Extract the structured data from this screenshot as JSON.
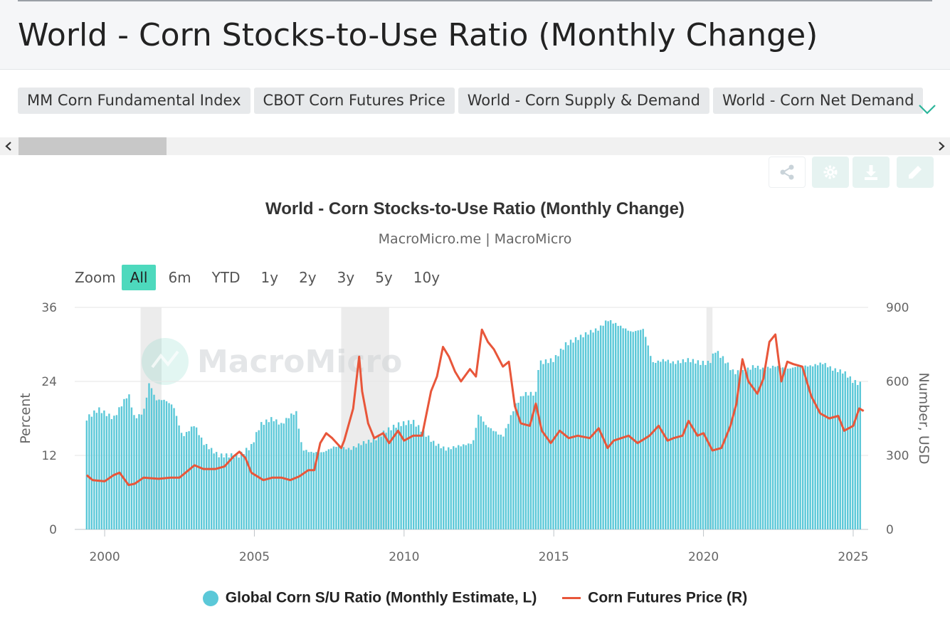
{
  "page": {
    "title": "World - Corn Stocks-to-Use Ratio (Monthly Change)"
  },
  "tabs": [
    {
      "label": "MM Corn Fundamental Index"
    },
    {
      "label": "CBOT Corn Futures Price"
    },
    {
      "label": "World - Corn Supply & Demand"
    },
    {
      "label": "World - Corn Net Demand"
    }
  ],
  "toolbar": {
    "icons": [
      "share-icon",
      "gear-icon",
      "download-icon",
      "edit-icon"
    ]
  },
  "zoom": {
    "label": "Zoom",
    "options": [
      "All",
      "6m",
      "YTD",
      "1y",
      "2y",
      "3y",
      "5y",
      "10y"
    ],
    "selected": "All"
  },
  "watermark": "MacroMicro",
  "colors": {
    "bars": "#5bc8d8",
    "line": "#e8563a",
    "accent": "#4dd9bd",
    "recession": "#ececec"
  },
  "chart_data": {
    "type": "bar",
    "title": "World - Corn Stocks-to-Use Ratio (Monthly Change)",
    "subtitle": "MacroMicro.me | MacroMicro",
    "ylabel_left": "Percent",
    "ylabel_right": "Number, USD",
    "ylim_left": [
      0,
      36
    ],
    "ylim_right": [
      0,
      900
    ],
    "yticks_left": [
      "0",
      "12",
      "24",
      "36"
    ],
    "yticks_right": [
      "0",
      "300",
      "600",
      "900"
    ],
    "xticks": [
      "2000",
      "2005",
      "2010",
      "2015",
      "2020",
      "2025"
    ],
    "xlim": [
      1999.0,
      2025.5
    ],
    "grid": true,
    "legend_position": "bottom",
    "shaded_periods": [
      [
        2001.2,
        2001.9
      ],
      [
        2007.9,
        2009.5
      ],
      [
        2020.1,
        2020.3
      ]
    ],
    "series": [
      {
        "name": "Global Corn S/U Ratio (Monthly Estimate, L)",
        "type": "bar",
        "axis": "left",
        "points": [
          [
            1999.4,
            18.0
          ],
          [
            1999.8,
            19.5
          ],
          [
            2000.3,
            18.0
          ],
          [
            2000.6,
            20.5
          ],
          [
            2000.8,
            22.0
          ],
          [
            2001.0,
            18.0
          ],
          [
            2001.3,
            19.0
          ],
          [
            2001.5,
            24.0
          ],
          [
            2001.7,
            21.0
          ],
          [
            2002.0,
            21.0
          ],
          [
            2002.3,
            20.0
          ],
          [
            2002.6,
            15.0
          ],
          [
            2003.0,
            17.0
          ],
          [
            2003.3,
            14.0
          ],
          [
            2003.8,
            12.0
          ],
          [
            2004.5,
            12.0
          ],
          [
            2004.9,
            13.5
          ],
          [
            2005.2,
            17.0
          ],
          [
            2005.6,
            18.0
          ],
          [
            2005.9,
            17.0
          ],
          [
            2006.2,
            18.5
          ],
          [
            2006.4,
            19.0
          ],
          [
            2006.6,
            13.0
          ],
          [
            2006.9,
            12.5
          ],
          [
            2007.3,
            12.5
          ],
          [
            2007.7,
            13.5
          ],
          [
            2008.2,
            13.0
          ],
          [
            2008.6,
            14.0
          ],
          [
            2009.0,
            14.5
          ],
          [
            2009.4,
            16.0
          ],
          [
            2009.8,
            17.0
          ],
          [
            2010.3,
            17.5
          ],
          [
            2010.6,
            16.0
          ],
          [
            2011.0,
            14.0
          ],
          [
            2011.4,
            13.0
          ],
          [
            2011.8,
            13.5
          ],
          [
            2012.3,
            14.0
          ],
          [
            2012.5,
            19.0
          ],
          [
            2012.7,
            17.0
          ],
          [
            2013.0,
            16.0
          ],
          [
            2013.3,
            15.0
          ],
          [
            2013.7,
            20.0
          ],
          [
            2014.0,
            22.0
          ],
          [
            2014.4,
            22.0
          ],
          [
            2014.5,
            27.0
          ],
          [
            2015.0,
            27.5
          ],
          [
            2015.4,
            30.0
          ],
          [
            2015.8,
            31.0
          ],
          [
            2016.2,
            32.0
          ],
          [
            2016.5,
            32.5
          ],
          [
            2016.8,
            34.0
          ],
          [
            2017.2,
            33.0
          ],
          [
            2017.6,
            32.0
          ],
          [
            2018.0,
            32.5
          ],
          [
            2018.3,
            27.0
          ],
          [
            2018.7,
            27.5
          ],
          [
            2019.0,
            27.0
          ],
          [
            2019.5,
            27.5
          ],
          [
            2019.9,
            27.0
          ],
          [
            2020.2,
            27.0
          ],
          [
            2020.4,
            29.0
          ],
          [
            2020.7,
            27.5
          ],
          [
            2021.0,
            25.5
          ],
          [
            2021.3,
            25.5
          ],
          [
            2021.7,
            26.5
          ],
          [
            2022.0,
            26.0
          ],
          [
            2022.4,
            26.5
          ],
          [
            2022.8,
            26.0
          ],
          [
            2023.2,
            26.5
          ],
          [
            2023.6,
            26.5
          ],
          [
            2024.0,
            27.0
          ],
          [
            2024.3,
            26.0
          ],
          [
            2024.7,
            25.5
          ],
          [
            2025.0,
            24.0
          ],
          [
            2025.3,
            23.5
          ]
        ]
      },
      {
        "name": "Corn Futures Price (R)",
        "type": "line",
        "axis": "right",
        "points": [
          [
            1999.4,
            220
          ],
          [
            1999.6,
            200
          ],
          [
            2000.0,
            195
          ],
          [
            2000.3,
            220
          ],
          [
            2000.5,
            230
          ],
          [
            2000.8,
            180
          ],
          [
            2001.0,
            185
          ],
          [
            2001.3,
            210
          ],
          [
            2001.8,
            205
          ],
          [
            2002.2,
            210
          ],
          [
            2002.5,
            210
          ],
          [
            2002.8,
            240
          ],
          [
            2003.0,
            260
          ],
          [
            2003.3,
            245
          ],
          [
            2003.7,
            245
          ],
          [
            2004.0,
            255
          ],
          [
            2004.3,
            295
          ],
          [
            2004.5,
            315
          ],
          [
            2004.7,
            290
          ],
          [
            2004.9,
            230
          ],
          [
            2005.3,
            200
          ],
          [
            2005.6,
            210
          ],
          [
            2005.9,
            210
          ],
          [
            2006.2,
            200
          ],
          [
            2006.5,
            215
          ],
          [
            2006.8,
            240
          ],
          [
            2007.0,
            240
          ],
          [
            2007.2,
            350
          ],
          [
            2007.4,
            390
          ],
          [
            2007.6,
            370
          ],
          [
            2007.9,
            330
          ],
          [
            2008.0,
            360
          ],
          [
            2008.3,
            490
          ],
          [
            2008.5,
            700
          ],
          [
            2008.6,
            560
          ],
          [
            2008.8,
            430
          ],
          [
            2009.0,
            370
          ],
          [
            2009.3,
            390
          ],
          [
            2009.5,
            350
          ],
          [
            2009.8,
            400
          ],
          [
            2010.0,
            360
          ],
          [
            2010.3,
            380
          ],
          [
            2010.6,
            380
          ],
          [
            2010.9,
            560
          ],
          [
            2011.1,
            620
          ],
          [
            2011.3,
            740
          ],
          [
            2011.5,
            700
          ],
          [
            2011.7,
            640
          ],
          [
            2011.9,
            600
          ],
          [
            2012.2,
            650
          ],
          [
            2012.4,
            620
          ],
          [
            2012.6,
            810
          ],
          [
            2012.8,
            760
          ],
          [
            2013.0,
            730
          ],
          [
            2013.3,
            660
          ],
          [
            2013.5,
            680
          ],
          [
            2013.7,
            500
          ],
          [
            2013.9,
            430
          ],
          [
            2014.2,
            420
          ],
          [
            2014.4,
            510
          ],
          [
            2014.6,
            400
          ],
          [
            2014.9,
            350
          ],
          [
            2015.2,
            400
          ],
          [
            2015.5,
            370
          ],
          [
            2015.8,
            380
          ],
          [
            2016.2,
            370
          ],
          [
            2016.5,
            410
          ],
          [
            2016.8,
            330
          ],
          [
            2017.0,
            360
          ],
          [
            2017.5,
            380
          ],
          [
            2017.8,
            350
          ],
          [
            2018.2,
            380
          ],
          [
            2018.5,
            420
          ],
          [
            2018.8,
            360
          ],
          [
            2019.0,
            370
          ],
          [
            2019.3,
            380
          ],
          [
            2019.5,
            440
          ],
          [
            2019.8,
            380
          ],
          [
            2020.0,
            390
          ],
          [
            2020.3,
            320
          ],
          [
            2020.6,
            330
          ],
          [
            2020.9,
            420
          ],
          [
            2021.1,
            510
          ],
          [
            2021.3,
            690
          ],
          [
            2021.5,
            600
          ],
          [
            2021.8,
            550
          ],
          [
            2022.0,
            610
          ],
          [
            2022.2,
            760
          ],
          [
            2022.4,
            790
          ],
          [
            2022.6,
            600
          ],
          [
            2022.8,
            680
          ],
          [
            2023.0,
            670
          ],
          [
            2023.3,
            660
          ],
          [
            2023.6,
            540
          ],
          [
            2023.9,
            470
          ],
          [
            2024.2,
            450
          ],
          [
            2024.5,
            460
          ],
          [
            2024.7,
            400
          ],
          [
            2025.0,
            420
          ],
          [
            2025.2,
            490
          ],
          [
            2025.35,
            480
          ]
        ]
      }
    ]
  },
  "legend": {
    "items": [
      {
        "label": "Global Corn S/U Ratio (Monthly Estimate, L)"
      },
      {
        "label": "Corn Futures Price (R)"
      }
    ]
  }
}
